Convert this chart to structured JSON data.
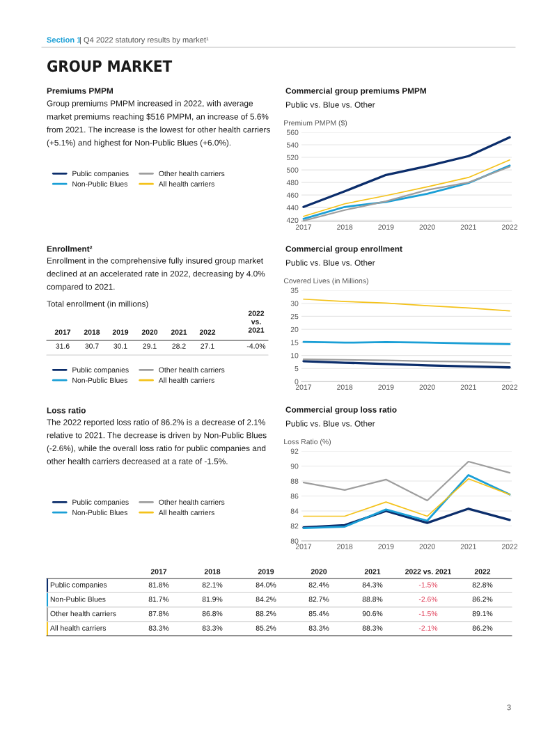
{
  "chart_data": [
    {
      "type": "line",
      "title": "Commercial group premiums PMPM",
      "subtitle": "Public vs. Blue vs. Other",
      "ylabel": "Premium PMPM ($)",
      "categories": [
        "2017",
        "2018",
        "2019",
        "2020",
        "2021",
        "2022"
      ],
      "series": [
        {
          "name": "Public companies",
          "color": "#0b2d6b",
          "values": [
            441,
            466,
            492,
            506,
            522,
            552
          ]
        },
        {
          "name": "Non-Public Blues",
          "color": "#1a9fd6",
          "values": [
            422,
            441,
            449,
            462,
            479,
            507
          ]
        },
        {
          "name": "Other health carriers",
          "color": "#9e9e9e",
          "values": [
            419,
            436,
            450,
            468,
            480,
            505
          ]
        },
        {
          "name": "All health carriers",
          "color": "#f4c21a",
          "values": [
            426,
            446,
            459,
            473,
            488,
            516
          ]
        }
      ],
      "ylim": [
        418,
        560
      ],
      "yticks": [
        420,
        440,
        460,
        480,
        500,
        520,
        540,
        560
      ],
      "grid": "y",
      "legend": "left",
      "marker": "none",
      "line_style": "solid",
      "annotations": [
        "Section 1",
        "| Q4 2022 statutory results by market¹",
        "GROUP MARKET",
        "Premiums PMPM",
        "Group premiums PMPM increased in 2022, with average market premiums reaching $516 PMPM, an increase of 5.6% from 2021. The increase is the lowest for other health carriers (+5.1%) and highest for Non-Public Blues (+6.0%)."
      ]
    },
    {
      "type": "line",
      "title": "Commercial group enrollment",
      "subtitle": "Public vs. Blue vs. Other",
      "ylabel": "Covered Lives (in Millions)",
      "categories": [
        "2017",
        "2018",
        "2019",
        "2020",
        "2021",
        "2022"
      ],
      "series": [
        {
          "name": "Public companies",
          "color": "#0b2d6b",
          "values": [
            7.8,
            7.2,
            6.7,
            6.2,
            5.8,
            5.4
          ]
        },
        {
          "name": "Non-Public Blues",
          "color": "#1a9fd6",
          "values": [
            15.2,
            14.9,
            15.1,
            14.9,
            14.6,
            14.3
          ]
        },
        {
          "name": "Other health carriers",
          "color": "#9e9e9e",
          "values": [
            8.5,
            8.3,
            8.1,
            7.8,
            7.6,
            7.2
          ]
        },
        {
          "name": "All health carriers",
          "color": "#f4c21a",
          "values": [
            31.6,
            30.7,
            30.1,
            29.1,
            28.2,
            27.1
          ]
        }
      ],
      "ylim": [
        0,
        35
      ],
      "yticks": [
        0,
        5,
        10,
        15,
        20,
        25,
        30,
        35
      ],
      "grid": "y",
      "legend": "left",
      "marker": "none",
      "line_style": "solid",
      "annotations": [
        "Enrollment²",
        "Enrollment in the comprehensive fully insured group market declined at an accelerated rate in 2022, decreasing by 4.0% compared to 2021.",
        "Total enrollment (in millions)",
        "2022 vs. 2021",
        "-4.0%",
        "31.6",
        "30.7",
        "30.1",
        "29.1",
        "28.2",
        "27.1"
      ]
    },
    {
      "type": "line",
      "title": "Commercial group loss ratio",
      "subtitle": "Public vs. Blue vs. Other",
      "ylabel": "Loss Ratio (%)",
      "categories": [
        "2017",
        "2018",
        "2019",
        "2020",
        "2021",
        "2022"
      ],
      "series": [
        {
          "name": "Public companies",
          "color": "#0b2d6b",
          "values": [
            81.8,
            82.1,
            84.0,
            82.4,
            84.3,
            82.8
          ]
        },
        {
          "name": "Non-Public Blues",
          "color": "#1a9fd6",
          "values": [
            81.7,
            81.9,
            84.2,
            82.7,
            88.8,
            86.2
          ]
        },
        {
          "name": "Other health carriers",
          "color": "#9e9e9e",
          "values": [
            87.8,
            86.8,
            88.2,
            85.4,
            90.6,
            89.1
          ]
        },
        {
          "name": "All health carriers",
          "color": "#f4c21a",
          "values": [
            83.3,
            83.3,
            85.2,
            83.3,
            88.3,
            86.2
          ]
        }
      ],
      "ylim": [
        80,
        92
      ],
      "yticks": [
        80,
        82,
        84,
        86,
        88,
        90,
        92
      ],
      "grid": "y",
      "legend": "left",
      "marker": "none",
      "line_style": "solid",
      "annotations": [
        "Loss ratio",
        "The 2022 reported loss ratio of 86.2% is a decrease of 2.1% relative to 2021. The decrease is driven by Non-Public Blues (-2.6%), while the overall loss ratio for public companies and other health carriers decreased at a rate of -1.5%.",
        "2022 vs. 2021",
        "-1.5%",
        "-2.6%",
        "-1.5%",
        "-2.1%",
        "3",
        "81.8%",
        "82.1%",
        "84.0%",
        "82.4%",
        "84.3%",
        "82.8%",
        "81.7%",
        "81.9%",
        "84.2%",
        "82.7%",
        "88.8%",
        "86.2%",
        "87.8%",
        "86.8%",
        "88.2%",
        "85.4%",
        "90.6%",
        "89.1%",
        "83.3%",
        "83.3%",
        "85.2%",
        "83.3%",
        "88.3%",
        "86.2%"
      ]
    }
  ]
}
